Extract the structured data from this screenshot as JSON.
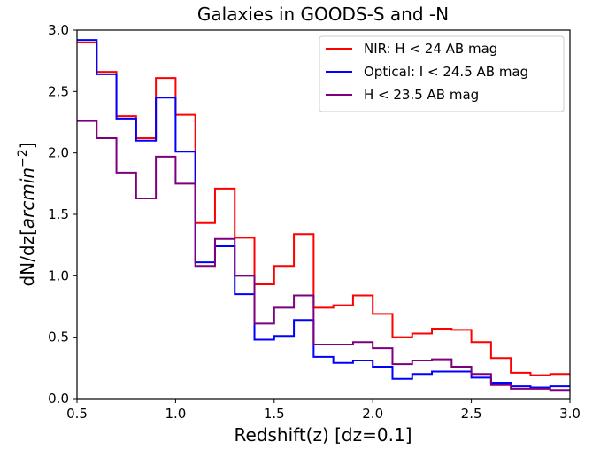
{
  "chart_data": {
    "type": "line",
    "title": "Galaxies in GOODS-S and -N",
    "xlabel": "Redshift(z) [dz=0.1]",
    "ylabel_prefix": "dN/dz[",
    "ylabel_unit": "arcmin",
    "ylabel_exponent": "−2",
    "ylabel_suffix": "]",
    "xlim": [
      0.5,
      3.0
    ],
    "ylim": [
      0.0,
      3.0
    ],
    "xticks": [
      0.5,
      1.0,
      1.5,
      2.0,
      2.5,
      3.0
    ],
    "yticks": [
      0.0,
      0.5,
      1.0,
      1.5,
      2.0,
      2.5,
      3.0
    ],
    "xtick_labels": [
      "0.5",
      "1.0",
      "1.5",
      "2.0",
      "2.5",
      "3.0"
    ],
    "ytick_labels": [
      "0.0",
      "0.5",
      "1.0",
      "1.5",
      "2.0",
      "2.5",
      "3.0"
    ],
    "step": "post",
    "grid": false,
    "legend_position": "top-right",
    "bin_edges": [
      0.5,
      0.6,
      0.7,
      0.8,
      0.9,
      1.0,
      1.1,
      1.2,
      1.3,
      1.4,
      1.5,
      1.6,
      1.7,
      1.8,
      1.9,
      2.0,
      2.1,
      2.2,
      2.3,
      2.4,
      2.5,
      2.6,
      2.7,
      2.8,
      2.9,
      3.0
    ],
    "series": [
      {
        "name": "NIR: H < 24 AB mag",
        "color": "#ff0000",
        "values": [
          2.9,
          2.66,
          2.3,
          2.12,
          2.61,
          2.31,
          1.43,
          1.71,
          1.31,
          0.93,
          1.08,
          1.34,
          0.74,
          0.76,
          0.84,
          0.69,
          0.5,
          0.53,
          0.57,
          0.56,
          0.46,
          0.33,
          0.21,
          0.19,
          0.2
        ]
      },
      {
        "name": "Optical: I < 24.5 AB mag",
        "color": "#0000ff",
        "values": [
          2.92,
          2.64,
          2.28,
          2.1,
          2.45,
          2.01,
          1.11,
          1.24,
          0.85,
          0.48,
          0.51,
          0.64,
          0.34,
          0.29,
          0.31,
          0.26,
          0.16,
          0.2,
          0.22,
          0.22,
          0.17,
          0.13,
          0.1,
          0.09,
          0.1
        ]
      },
      {
        "name": "H < 23.5 AB mag",
        "color": "#7f007f",
        "values": [
          2.26,
          2.12,
          1.84,
          1.63,
          1.97,
          1.75,
          1.08,
          1.3,
          1.0,
          0.61,
          0.74,
          0.84,
          0.44,
          0.44,
          0.46,
          0.41,
          0.28,
          0.31,
          0.32,
          0.26,
          0.2,
          0.11,
          0.08,
          0.08,
          0.07
        ]
      }
    ]
  }
}
